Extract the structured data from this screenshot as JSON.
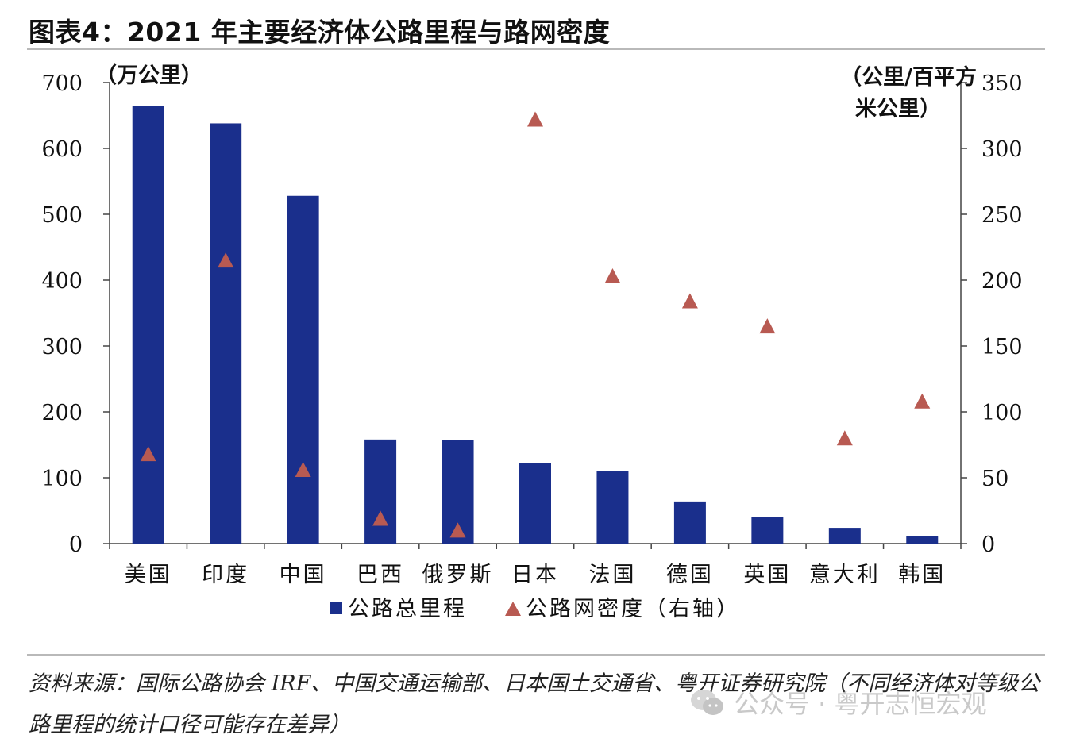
{
  "title": "图表4：2021 年主要经济体公路里程与路网密度",
  "chart_data": {
    "type": "bar",
    "categories": [
      "美国",
      "印度",
      "中国",
      "巴西",
      "俄罗斯",
      "日本",
      "法国",
      "德国",
      "英国",
      "意大利",
      "韩国"
    ],
    "series": [
      {
        "name": "公路总里程",
        "kind": "bar",
        "axis": "left",
        "color": "#1a2f8c",
        "values": [
          665,
          638,
          528,
          158,
          157,
          122,
          110,
          64,
          40,
          24,
          11
        ]
      },
      {
        "name": "公路网密度（右轴）",
        "kind": "scatter",
        "marker": "triangle",
        "axis": "right",
        "color": "#b85a52",
        "values": [
          68,
          215,
          56,
          19,
          10,
          322,
          203,
          184,
          165,
          80,
          108
        ]
      }
    ],
    "y_left": {
      "label": "（万公里）",
      "min": 0,
      "max": 700,
      "ticks": [
        0,
        100,
        200,
        300,
        400,
        500,
        600,
        700
      ]
    },
    "y_right": {
      "label_line1": "（公里/百平方",
      "label_line2": "米公里）",
      "min": 0,
      "max": 350,
      "ticks": [
        0,
        50,
        100,
        150,
        200,
        250,
        300,
        350
      ]
    },
    "legend_position": "bottom"
  },
  "source": "资料来源：国际公路协会 IRF、中国交通运输部、日本国土交通省、粤开证券研究院（不同经济体对等级公路里程的统计口径可能存在差异）",
  "watermark": "公众号 · 粤开志恒宏观"
}
